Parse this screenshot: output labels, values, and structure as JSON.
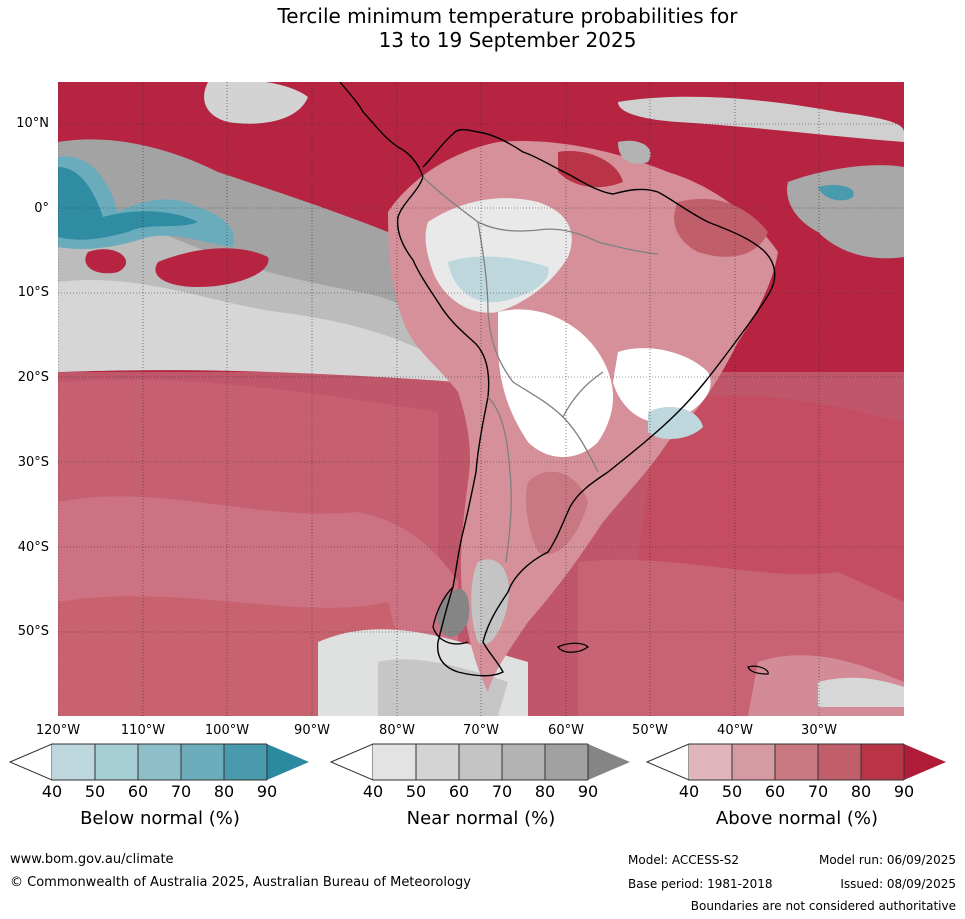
{
  "title_line1": "Tercile minimum temperature probabilities for",
  "title_line2": "13 to 19 September 2025",
  "lat_labels": [
    "10°N",
    "0°",
    "10°S",
    "20°S",
    "30°S",
    "40°S",
    "50°S"
  ],
  "lon_labels": [
    "120°W",
    "110°W",
    "100°W",
    "90°W",
    "80°W",
    "70°W",
    "60°W",
    "50°W",
    "40°W",
    "30°W"
  ],
  "legend": {
    "below": {
      "title": "Below normal (%)",
      "colors": [
        "#bdd7dd",
        "#a6ccd4",
        "#8ebfc9",
        "#6cacbb",
        "#4a9aae",
        "#2b8aa0"
      ]
    },
    "near": {
      "title": "Near normal (%)",
      "colors": [
        "#e3e3e3",
        "#d4d4d4",
        "#c4c4c4",
        "#b3b3b3",
        "#a1a1a1",
        "#858585"
      ]
    },
    "above": {
      "title": "Above normal (%)",
      "colors": [
        "#e0b5bb",
        "#d59aa2",
        "#c97882",
        "#c05e6a",
        "#b83446",
        "#b01c38"
      ]
    },
    "ticks": [
      "40",
      "50",
      "60",
      "70",
      "80",
      "90"
    ]
  },
  "footer": {
    "url": "www.bom.gov.au/climate",
    "copyright": "© Commonwealth of Australia 2025, Australian Bureau of Meteorology",
    "model": "Model: ACCESS-S2",
    "base_period": "Base period: 1981-2018",
    "model_run": "Model run: 06/09/2025",
    "issued": "Issued: 08/09/2025",
    "disclaimer": "Boundaries are not considered authoritative"
  }
}
